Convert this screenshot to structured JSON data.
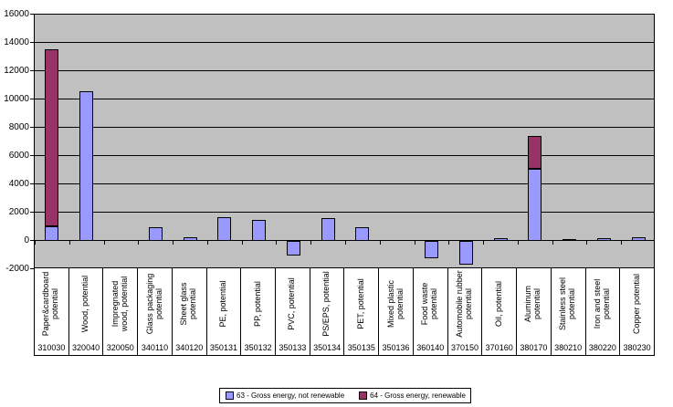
{
  "chart_data": {
    "type": "bar",
    "stacked": true,
    "title": "",
    "xlabel": "",
    "ylabel": "",
    "ylim": [
      -2000,
      16000
    ],
    "ytick_interval": 2000,
    "yticks": [
      16000,
      14000,
      12000,
      10000,
      8000,
      6000,
      4000,
      2000,
      0,
      -2000
    ],
    "grid": true,
    "plot_bg_color": "#c0c0c0",
    "legend_position": "bottom",
    "categories": [
      {
        "label": "Paper&cardboard potential",
        "code": "310030"
      },
      {
        "label": "Wood, potential",
        "code": "320040"
      },
      {
        "label": "Impregnated wood, potential",
        "code": "320050"
      },
      {
        "label": "Glass packaging potential",
        "code": "340110"
      },
      {
        "label": "Sheet glass potential",
        "code": "340120"
      },
      {
        "label": "PE, potential",
        "code": "350131"
      },
      {
        "label": "PP, potential",
        "code": "350132"
      },
      {
        "label": "PVC, potential",
        "code": "350133"
      },
      {
        "label": "PS/EPS, potential",
        "code": "350134"
      },
      {
        "label": "PET, potential",
        "code": "350135"
      },
      {
        "label": "Mixed plastic potential",
        "code": "350136"
      },
      {
        "label": "Food waste potential",
        "code": "360140"
      },
      {
        "label": "Automobile rubber potential",
        "code": "370150"
      },
      {
        "label": "Oil, potential",
        "code": "370160"
      },
      {
        "label": "Aluminum potential",
        "code": "380170"
      },
      {
        "label": "Stainless steel potential",
        "code": "380210"
      },
      {
        "label": "Iron and steel potential",
        "code": "380220"
      },
      {
        "label": "Copper potential",
        "code": "380230"
      }
    ],
    "series": [
      {
        "name": "63 - Gross energy, not renewable",
        "color": "#9999ff",
        "values": [
          1050,
          10600,
          0,
          950,
          270,
          1700,
          1500,
          -1050,
          1600,
          950,
          0,
          -1200,
          -1700,
          180,
          5100,
          120,
          180,
          250
        ]
      },
      {
        "name": "64 - Gross energy, renewable",
        "color": "#993366",
        "values": [
          12500,
          0,
          0,
          0,
          0,
          0,
          0,
          0,
          0,
          0,
          0,
          0,
          0,
          0,
          2300,
          0,
          0,
          0
        ]
      }
    ]
  }
}
